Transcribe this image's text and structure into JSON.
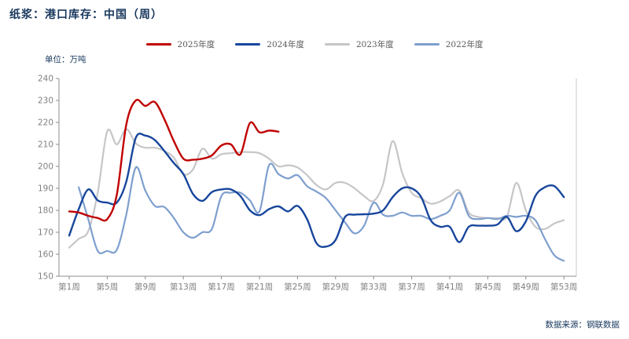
{
  "header": {
    "title": "纸浆：港口库存：中国（周）"
  },
  "unit_label": "单位：万吨",
  "source_label": "数据来源：钢联数据",
  "colors": {
    "series_2025": "#c00000",
    "series_2024": "#17469c",
    "series_2023": "#c6c6c9",
    "series_2022": "#7e9fce",
    "title_text": "#17375d",
    "tick_text": "#808080",
    "axis_line": "#8c8c8c",
    "right_border": "#c9c9c9",
    "legend_text": "#595959"
  },
  "legend": [
    {
      "label": "2025年度",
      "color": "#c00000"
    },
    {
      "label": "2024年度",
      "color": "#17469c"
    },
    {
      "label": "2023年度",
      "color": "#c6c6c9"
    },
    {
      "label": "2022年度",
      "color": "#7e9fce"
    }
  ],
  "axes": {
    "y": {
      "min": 150,
      "max": 240,
      "step": 10,
      "tick_labels": [
        "150",
        "160",
        "170",
        "180",
        "190",
        "200",
        "210",
        "220",
        "230",
        "240"
      ]
    },
    "x": {
      "tick_weeks": [
        1,
        5,
        9,
        13,
        17,
        21,
        25,
        29,
        33,
        37,
        41,
        45,
        49,
        53
      ],
      "tick_labels": [
        "第1周",
        "第5周",
        "第9周",
        "第13周",
        "第17周",
        "第21周",
        "第25周",
        "第29周",
        "第33周",
        "第37周",
        "第41周",
        "第45周",
        "第49周",
        "第53周"
      ]
    }
  },
  "chart_data": {
    "type": "line",
    "title": "纸浆：港口库存：中国（周）",
    "ylabel": "万吨",
    "ylim": [
      150,
      240
    ],
    "x_unit": "week",
    "x_range": [
      1,
      53
    ],
    "grid": false,
    "legend_position": "top-center",
    "smoothing": true,
    "series": [
      {
        "name": "2025年度",
        "color": "#c00000",
        "start_week": 1,
        "values": [
          179.5,
          179,
          177.5,
          176.5,
          176,
          187,
          219,
          230,
          227.5,
          229.3,
          221.5,
          211.5,
          203.5,
          203,
          203.5,
          205,
          209.5,
          210,
          205.5,
          219.8,
          215.5,
          216.3,
          215.8
        ]
      },
      {
        "name": "2024年度",
        "color": "#17469c",
        "start_week": 1,
        "values": [
          168.5,
          180.5,
          189.5,
          184.5,
          183.5,
          183.5,
          193,
          213,
          214,
          212,
          207,
          201.5,
          196.5,
          187.5,
          184.3,
          188.3,
          189.5,
          189.5,
          186.5,
          180,
          177.8,
          180.5,
          181.8,
          179.5,
          182,
          176,
          165,
          163.5,
          166.5,
          177,
          178,
          178.2,
          178.5,
          180,
          186,
          190,
          190,
          186,
          175.5,
          172.5,
          172.5,
          165.5,
          172.5,
          173,
          173,
          173.5,
          177,
          170.5,
          175,
          186.5,
          190.5,
          191,
          186
        ]
      },
      {
        "name": "2023年度",
        "color": "#c6c6c9",
        "start_week": 1,
        "values": [
          163,
          167,
          170.5,
          188,
          216,
          210,
          217,
          210.5,
          208.5,
          208.5,
          207,
          204,
          196.5,
          198.5,
          208,
          203.5,
          205.5,
          206,
          206.5,
          206.5,
          206,
          203.5,
          200,
          200.5,
          199.5,
          196,
          191.5,
          189.5,
          192.5,
          192.5,
          190,
          186.5,
          184.3,
          192,
          211.5,
          197,
          188,
          185.5,
          183,
          184,
          186.5,
          189,
          179,
          177,
          176.5,
          176.5,
          177,
          192.5,
          180,
          172.5,
          171.5,
          174,
          175.5
        ]
      },
      {
        "name": "2022年度",
        "color": "#7e9fce",
        "start_week": 2,
        "values": [
          190.5,
          176,
          161.5,
          161.5,
          162,
          178,
          199.5,
          189,
          182,
          181.5,
          176.5,
          170,
          167.5,
          170,
          171.5,
          186.5,
          188,
          188,
          184.5,
          179.5,
          200.5,
          196.5,
          194.5,
          196,
          191,
          188.5,
          185.5,
          180,
          174.5,
          169.5,
          173,
          183.5,
          178,
          177.5,
          179,
          177.5,
          177.5,
          176,
          177.5,
          180,
          188,
          177.5,
          176,
          176.5,
          176,
          177.5,
          177,
          177.5,
          175.5,
          167,
          159.5,
          157
        ]
      }
    ]
  }
}
